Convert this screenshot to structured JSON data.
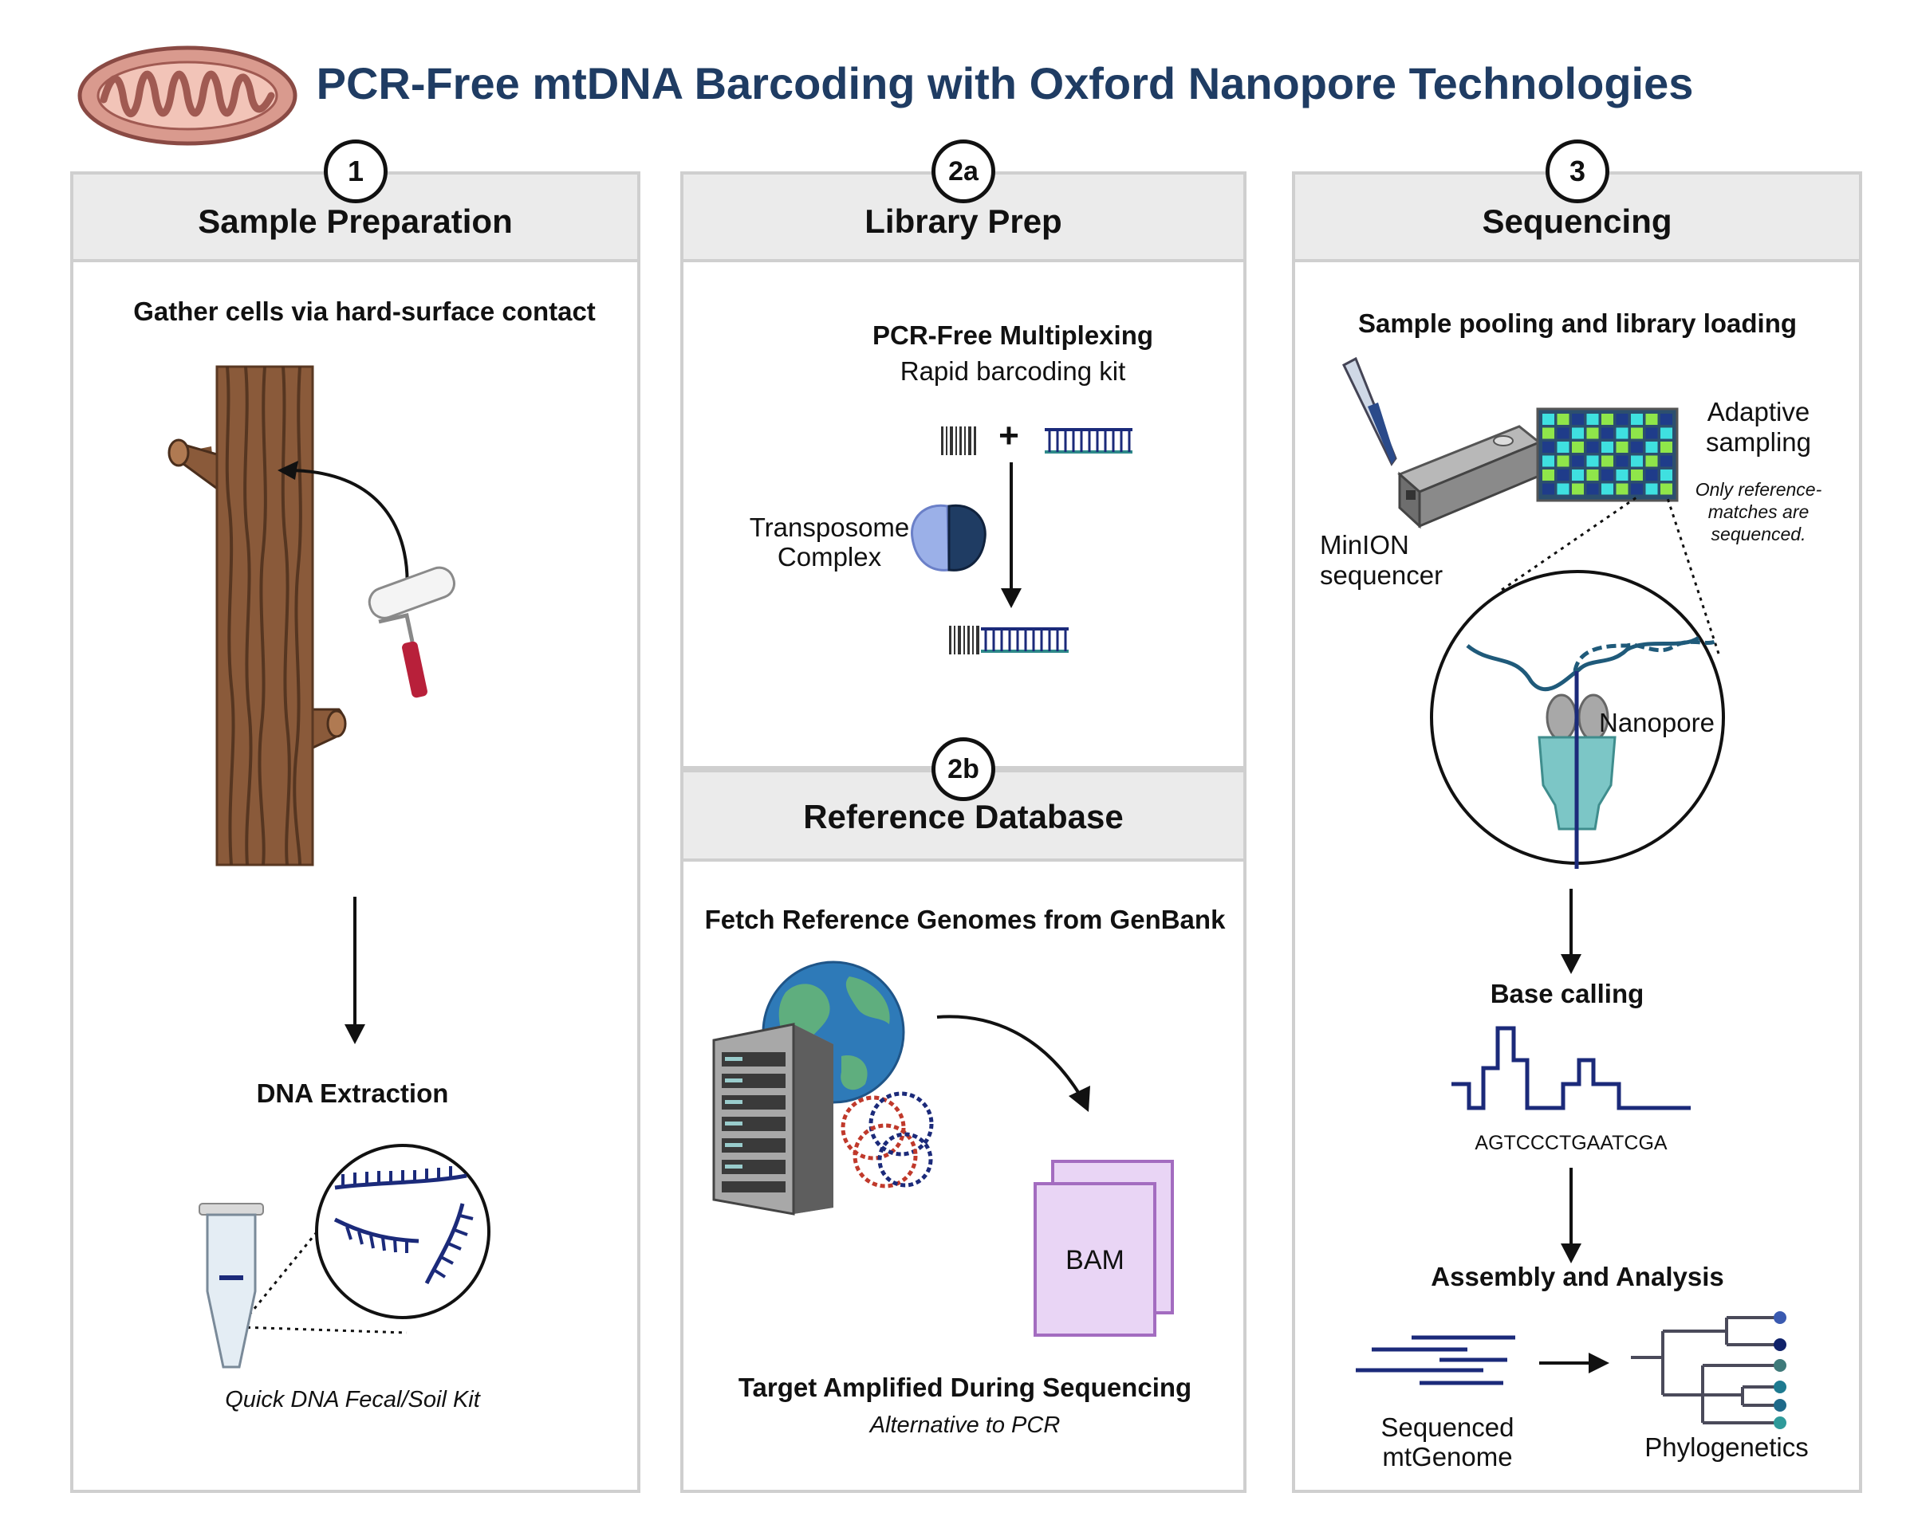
{
  "title": "PCR-Free mtDNA Barcoding with Oxford Nanopore Technologies",
  "panels": {
    "sample_prep": {
      "number": "1",
      "heading": "Sample Preparation",
      "step1": "Gather cells via hard-surface contact",
      "step2": "DNA Extraction",
      "kit": "Quick DNA Fecal/Soil Kit"
    },
    "library_prep": {
      "number": "2a",
      "heading": "Library Prep",
      "subtitle": "PCR-Free Multiplexing",
      "kit": "Rapid barcoding kit",
      "plus": "+",
      "transposome": "Transposome",
      "complex": "Complex"
    },
    "reference_db": {
      "number": "2b",
      "heading": "Reference Database",
      "fetch": "Fetch Reference Genomes from GenBank",
      "file": "BAM",
      "target": "Target Amplified During Sequencing",
      "alternative": "Alternative to PCR"
    },
    "sequencing": {
      "number": "3",
      "heading": "Sequencing",
      "pooling": "Sample pooling and library loading",
      "adaptive_1": "Adaptive",
      "adaptive_2": "sampling",
      "note_1": "Only reference-",
      "note_2": "matches are",
      "note_3": "sequenced.",
      "minion_1": "MinION",
      "minion_2": "sequencer",
      "nanopore": "Nanopore",
      "base_calling": "Base calling",
      "sequence": "AGTCCCTGAATCGA",
      "assembly": "Assembly and Analysis",
      "mtgenome_1": "Sequenced",
      "mtgenome_2": "mtGenome",
      "phylo": "Phylogenetics"
    }
  },
  "colors": {
    "title": "#1f3c63",
    "panel_border": "#cfcfcf",
    "header_bg": "#ebebeb",
    "dna_navy": "#1b2a7a",
    "teal": "#2f8a8a",
    "bark": "#8a5a3a",
    "lilac": "#e9d5f5"
  }
}
